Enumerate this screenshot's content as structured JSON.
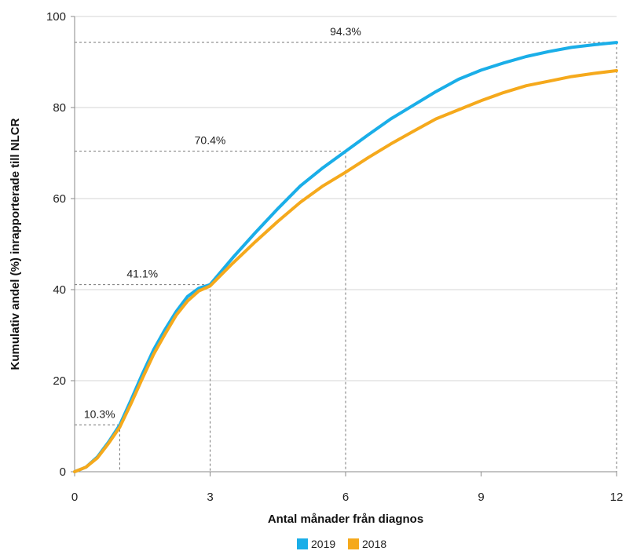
{
  "chart_data": {
    "type": "line",
    "title": "",
    "xlabel": "Antal månader från diagnos",
    "ylabel": "Kumulativ andel (%) inrapporterade till NLCR",
    "xlim": [
      0,
      12
    ],
    "ylim": [
      0,
      100
    ],
    "x_ticks": [
      "0",
      "3",
      "6",
      "9",
      "12"
    ],
    "y_ticks": [
      "0",
      "20",
      "40",
      "60",
      "80",
      "100"
    ],
    "grid": "horizontal",
    "legend_position": "bottom-center",
    "series": [
      {
        "name": "2019",
        "color": "#1aaee8",
        "x": [
          0,
          0.25,
          0.5,
          0.75,
          1.0,
          1.25,
          1.5,
          1.75,
          2.0,
          2.25,
          2.5,
          2.75,
          3.0,
          3.5,
          4.0,
          4.5,
          5.0,
          5.5,
          6.0,
          6.5,
          7.0,
          7.5,
          8.0,
          8.5,
          9.0,
          9.5,
          10.0,
          10.5,
          11.0,
          11.5,
          12.0
        ],
        "y": [
          0,
          1,
          3.2,
          6.5,
          10.3,
          15.8,
          21.5,
          26.8,
          31.2,
          35.2,
          38.5,
          40.3,
          41.1,
          47.0,
          52.5,
          57.8,
          62.8,
          66.8,
          70.4,
          74.0,
          77.5,
          80.5,
          83.5,
          86.2,
          88.2,
          89.8,
          91.2,
          92.3,
          93.2,
          93.8,
          94.3
        ]
      },
      {
        "name": "2018",
        "color": "#f5a91c",
        "x": [
          0,
          0.25,
          0.5,
          0.75,
          1.0,
          1.25,
          1.5,
          1.75,
          2.0,
          2.25,
          2.5,
          2.75,
          3.0,
          3.5,
          4.0,
          4.5,
          5.0,
          5.5,
          6.0,
          6.5,
          7.0,
          7.5,
          8.0,
          8.5,
          9.0,
          9.5,
          10.0,
          10.5,
          11.0,
          11.5,
          12.0
        ],
        "y": [
          0,
          1,
          3.0,
          6.2,
          9.8,
          15.0,
          20.5,
          25.8,
          30.2,
          34.4,
          37.5,
          39.7,
          40.8,
          45.8,
          50.5,
          55.0,
          59.2,
          62.8,
          65.8,
          69.0,
          72.0,
          74.8,
          77.5,
          79.5,
          81.5,
          83.3,
          84.8,
          85.8,
          86.8,
          87.5,
          88.1
        ]
      }
    ],
    "annotations": [
      {
        "x": 1,
        "y": 10.3,
        "label": "10.3%"
      },
      {
        "x": 3,
        "y": 41.1,
        "label": "41.1%"
      },
      {
        "x": 6,
        "y": 70.4,
        "label": "70.4%"
      },
      {
        "x": 12,
        "y": 94.3,
        "label": "94.3%"
      }
    ]
  }
}
